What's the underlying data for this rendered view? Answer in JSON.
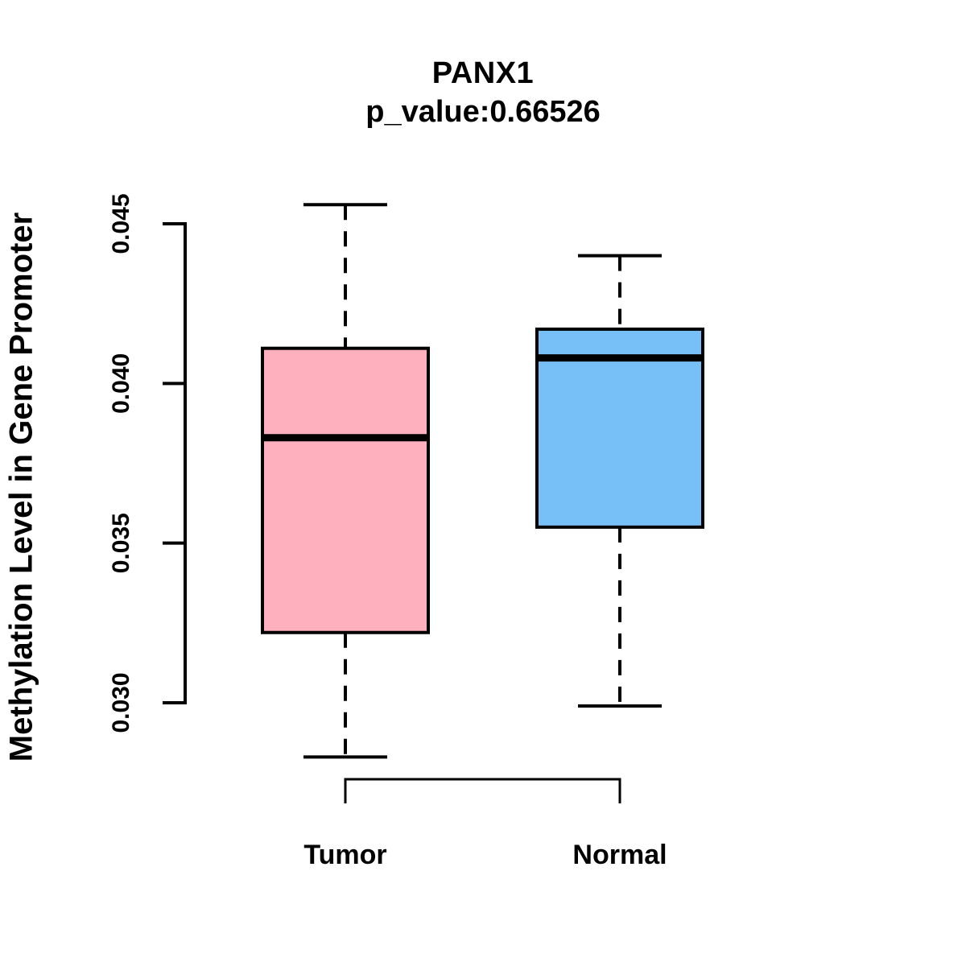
{
  "chart_data": {
    "type": "boxplot",
    "title": "PANX1",
    "subtitle": "p_value:0.66526",
    "ylabel": "Methylation Level in Gene Promoter",
    "xlabel": "",
    "categories": [
      "Tumor",
      "Normal"
    ],
    "yticks": [
      "0.030",
      "0.035",
      "0.040",
      "0.045"
    ],
    "ytick_values": [
      0.03,
      0.035,
      0.04,
      0.045
    ],
    "axis_range": [
      0.03,
      0.045
    ],
    "grid": false,
    "legend": false,
    "series": [
      {
        "name": "Tumor",
        "box_color": "#FFB0BE",
        "lower_whisker": 0.0283,
        "q1": 0.0322,
        "median": 0.0383,
        "q3": 0.0411,
        "upper_whisker": 0.0456
      },
      {
        "name": "Normal",
        "box_color": "#76BFF7",
        "lower_whisker": 0.0299,
        "q1": 0.0355,
        "median": 0.0408,
        "q3": 0.0417,
        "upper_whisker": 0.044
      }
    ],
    "stroke_color": "#000000",
    "background_color": "#FFFFFF"
  }
}
